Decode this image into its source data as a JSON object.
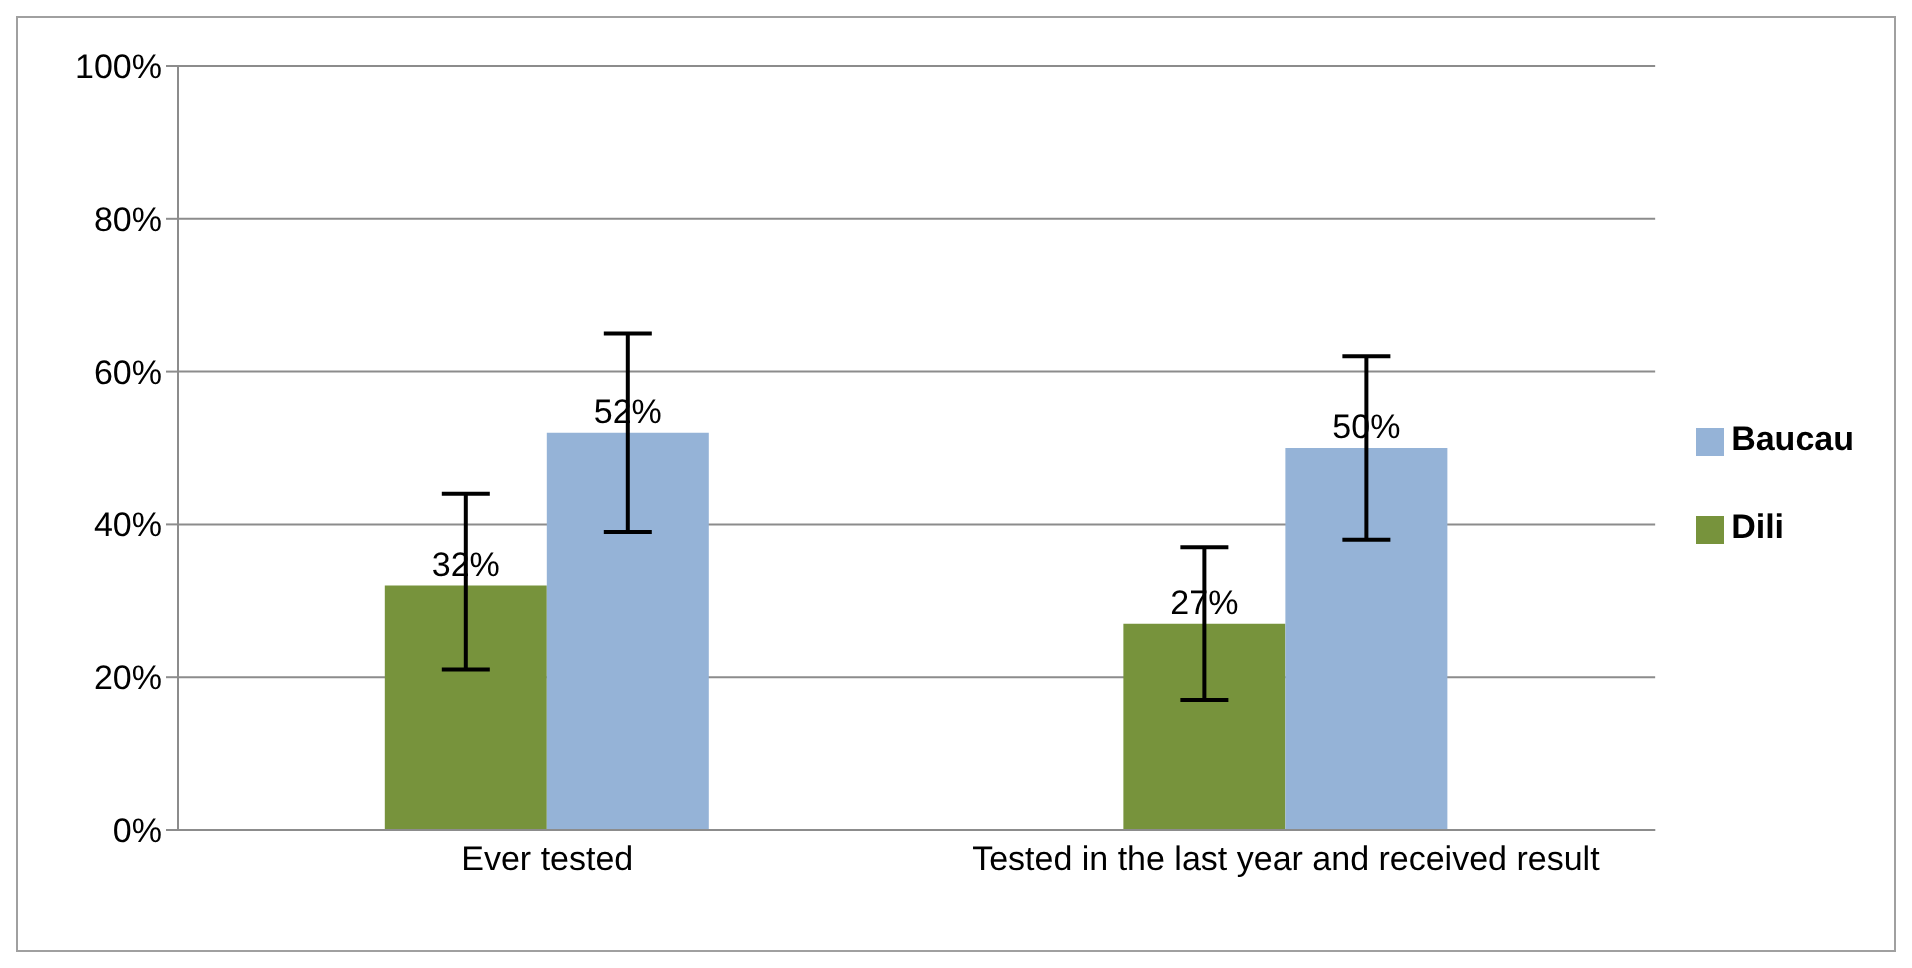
{
  "chart_data": {
    "type": "bar",
    "categories": [
      "Ever tested",
      "Tested in the last year and received result"
    ],
    "series": [
      {
        "name": "Dili",
        "color": "#77933c",
        "values": [
          32,
          27
        ],
        "errors": [
          [
            21,
            44
          ],
          [
            17,
            37
          ]
        ],
        "value_labels": [
          "32%",
          "27%"
        ]
      },
      {
        "name": "Baucau",
        "color": "#95b3d7",
        "values": [
          52,
          50
        ],
        "errors": [
          [
            39,
            65
          ],
          [
            38,
            62
          ]
        ],
        "value_labels": [
          "52%",
          "50%"
        ]
      }
    ],
    "ylim": [
      0,
      100
    ],
    "yticks": [
      {
        "value": 0,
        "label": "0%"
      },
      {
        "value": 20,
        "label": "20%"
      },
      {
        "value": 40,
        "label": "40%"
      },
      {
        "value": 60,
        "label": "60%"
      },
      {
        "value": 80,
        "label": "80%"
      },
      {
        "value": 100,
        "label": "100%"
      }
    ],
    "grid": "y",
    "legend": "right"
  }
}
